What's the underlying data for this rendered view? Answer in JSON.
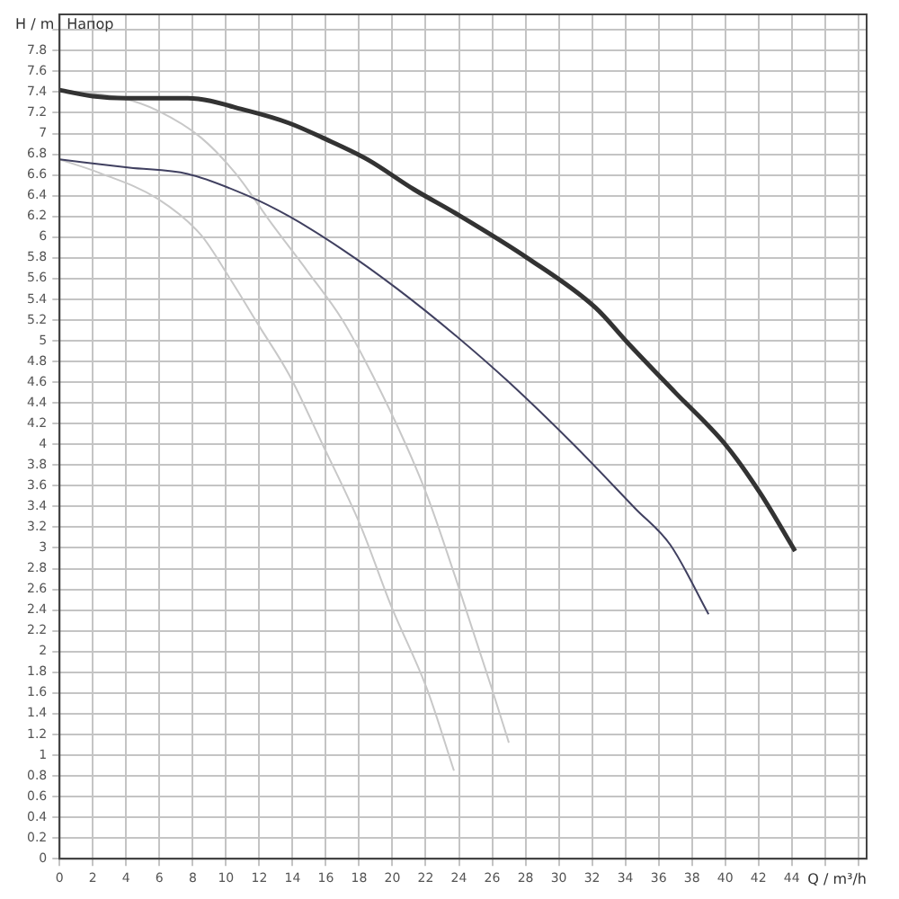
{
  "chart_data": {
    "type": "line",
    "xlabel": "Q / m³/h",
    "ylabel": "H / m",
    "annotations": [
      "Напор"
    ],
    "xlim": [
      0,
      48.5
    ],
    "ylim": [
      0,
      8.15
    ],
    "xticks": [
      0,
      2,
      4,
      6,
      8,
      10,
      12,
      14,
      16,
      18,
      20,
      22,
      24,
      26,
      28,
      30,
      32,
      34,
      36,
      38,
      40,
      42,
      44,
      {
        "value": 46,
        "label": null
      },
      {
        "value": 48,
        "label": null
      }
    ],
    "yticks": [
      0,
      0.2,
      0.4,
      0.6,
      0.8,
      1,
      1.2,
      1.4,
      1.6,
      1.8,
      2,
      2.2,
      2.4,
      2.6,
      2.8,
      3,
      3.2,
      3.4,
      3.6,
      3.8,
      4,
      4.2,
      4.4,
      4.6,
      4.8,
      5,
      5.2,
      5.4,
      5.6,
      5.8,
      6,
      6.2,
      6.4,
      6.6,
      6.8,
      7,
      7.2,
      7.4,
      7.6,
      7.8,
      {
        "value": 8,
        "label": null
      }
    ],
    "grid": true,
    "legend": false,
    "marker": "none",
    "line_style": "solid",
    "series": [
      {
        "color": "#333333",
        "x": [
          0,
          2,
          4,
          7.7,
          11.3,
          13.8,
          15.8,
          18.5,
          21.3,
          23.8,
          28.1,
          32.2,
          34.2,
          37,
          40,
          42.1,
          44.2
        ],
        "values": [
          7.42,
          7.36,
          7.34,
          7.34,
          7.22,
          7.1,
          6.96,
          6.75,
          6.46,
          6.23,
          5.8,
          5.32,
          4.97,
          4.5,
          4.0,
          3.53,
          2.97
        ]
      },
      {
        "color": "#404060",
        "x": [
          0,
          4.2,
          7.7,
          11.3,
          13.8,
          17,
          20.3,
          23.8,
          27,
          31,
          34.6,
          36.7,
          39
        ],
        "values": [
          6.75,
          6.67,
          6.61,
          6.4,
          6.2,
          5.88,
          5.5,
          5.05,
          4.6,
          3.98,
          3.38,
          3.03,
          2.36
        ]
      },
      {
        "color": "#c8c8c8",
        "x": [
          0,
          3.8,
          5.9,
          8.5,
          10.6,
          12.7,
          14.9,
          17,
          18.8,
          20.8,
          22.1,
          23.8,
          26,
          27
        ],
        "values": [
          7.42,
          7.34,
          7.22,
          6.96,
          6.61,
          6.14,
          5.67,
          5.2,
          4.67,
          4.0,
          3.5,
          2.71,
          1.63,
          1.12
        ]
      },
      {
        "color": "#c8c8c8",
        "x": [
          0,
          2.4,
          5.9,
          8.5,
          10.2,
          12,
          13.8,
          15.8,
          18.1,
          19.9,
          22.1,
          23.7
        ],
        "values": [
          6.75,
          6.62,
          6.37,
          6.02,
          5.61,
          5.14,
          4.67,
          4.0,
          3.21,
          2.45,
          1.63,
          0.85
        ]
      }
    ]
  }
}
